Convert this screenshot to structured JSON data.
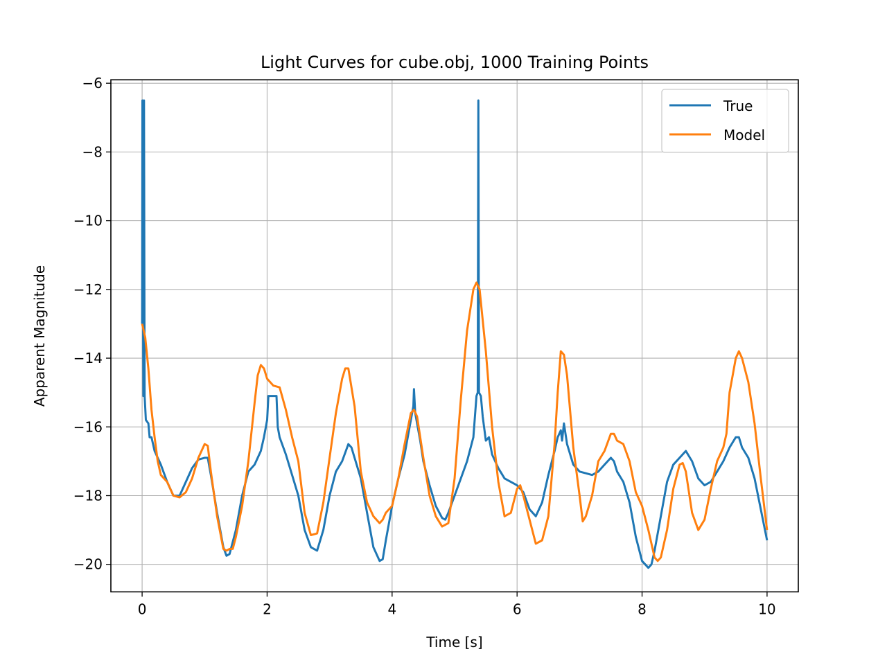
{
  "chart_data": {
    "type": "line",
    "title": "Light Curves for cube.obj, 1000 Training Points",
    "xlabel": "Time [s]",
    "ylabel": "Apparent Magnitude",
    "xlim": [
      -0.5,
      10.5
    ],
    "ylim": [
      -20.8,
      -5.9
    ],
    "x_ticks": [
      0,
      2,
      4,
      6,
      8,
      10
    ],
    "x_tick_labels": [
      "0",
      "2",
      "4",
      "6",
      "8",
      "10"
    ],
    "y_ticks": [
      -6,
      -8,
      -10,
      -12,
      -14,
      -16,
      -18,
      -20
    ],
    "y_tick_labels": [
      "−6",
      "−8",
      "−10",
      "−12",
      "−14",
      "−16",
      "−18",
      "−20"
    ],
    "grid": true,
    "legend_position": "top-right",
    "colors": {
      "True": "#1f77b4",
      "Model": "#ff7f0e"
    },
    "series": [
      {
        "name": "True",
        "points": [
          [
            0,
            -13.0
          ],
          [
            0.005,
            -6.5
          ],
          [
            0.02,
            -15.1
          ],
          [
            0.03,
            -6.5
          ],
          [
            0.04,
            -15.1
          ],
          [
            0.06,
            -15.8
          ],
          [
            0.1,
            -15.9
          ],
          [
            0.12,
            -16.3
          ],
          [
            0.15,
            -16.3
          ],
          [
            0.2,
            -16.7
          ],
          [
            0.3,
            -17.1
          ],
          [
            0.4,
            -17.6
          ],
          [
            0.5,
            -18.0
          ],
          [
            0.6,
            -18.0
          ],
          [
            0.7,
            -17.6
          ],
          [
            0.8,
            -17.2
          ],
          [
            0.9,
            -16.95
          ],
          [
            1.0,
            -16.9
          ],
          [
            1.05,
            -16.9
          ],
          [
            1.1,
            -17.4
          ],
          [
            1.2,
            -18.5
          ],
          [
            1.3,
            -19.5
          ],
          [
            1.35,
            -19.75
          ],
          [
            1.4,
            -19.7
          ],
          [
            1.5,
            -19.0
          ],
          [
            1.6,
            -18.0
          ],
          [
            1.7,
            -17.3
          ],
          [
            1.8,
            -17.1
          ],
          [
            1.9,
            -16.7
          ],
          [
            1.95,
            -16.3
          ],
          [
            2.0,
            -15.8
          ],
          [
            2.02,
            -15.1
          ],
          [
            2.1,
            -15.1
          ],
          [
            2.15,
            -15.1
          ],
          [
            2.17,
            -16.0
          ],
          [
            2.2,
            -16.3
          ],
          [
            2.3,
            -16.8
          ],
          [
            2.4,
            -17.4
          ],
          [
            2.5,
            -18.0
          ],
          [
            2.6,
            -19.0
          ],
          [
            2.7,
            -19.5
          ],
          [
            2.8,
            -19.6
          ],
          [
            2.9,
            -19.0
          ],
          [
            3.0,
            -18.0
          ],
          [
            3.1,
            -17.3
          ],
          [
            3.2,
            -17.0
          ],
          [
            3.3,
            -16.5
          ],
          [
            3.35,
            -16.6
          ],
          [
            3.4,
            -16.9
          ],
          [
            3.5,
            -17.5
          ],
          [
            3.6,
            -18.5
          ],
          [
            3.7,
            -19.5
          ],
          [
            3.8,
            -19.9
          ],
          [
            3.85,
            -19.85
          ],
          [
            3.9,
            -19.3
          ],
          [
            4.0,
            -18.3
          ],
          [
            4.1,
            -17.5
          ],
          [
            4.2,
            -16.8
          ],
          [
            4.3,
            -15.8
          ],
          [
            4.34,
            -15.4
          ],
          [
            4.35,
            -14.9
          ],
          [
            4.37,
            -15.6
          ],
          [
            4.4,
            -15.9
          ],
          [
            4.45,
            -16.4
          ],
          [
            4.5,
            -17.0
          ],
          [
            4.6,
            -17.7
          ],
          [
            4.7,
            -18.3
          ],
          [
            4.8,
            -18.65
          ],
          [
            4.85,
            -18.7
          ],
          [
            4.9,
            -18.5
          ],
          [
            5.0,
            -18.0
          ],
          [
            5.1,
            -17.5
          ],
          [
            5.2,
            -17.0
          ],
          [
            5.3,
            -16.3
          ],
          [
            5.35,
            -15.1
          ],
          [
            5.37,
            -15.0
          ],
          [
            5.38,
            -6.5
          ],
          [
            5.39,
            -15.0
          ],
          [
            5.42,
            -15.1
          ],
          [
            5.45,
            -15.7
          ],
          [
            5.5,
            -16.4
          ],
          [
            5.55,
            -16.3
          ],
          [
            5.6,
            -16.8
          ],
          [
            5.7,
            -17.2
          ],
          [
            5.8,
            -17.5
          ],
          [
            6.0,
            -17.7
          ],
          [
            6.1,
            -17.9
          ],
          [
            6.2,
            -18.4
          ],
          [
            6.3,
            -18.6
          ],
          [
            6.4,
            -18.2
          ],
          [
            6.5,
            -17.4
          ],
          [
            6.6,
            -16.7
          ],
          [
            6.65,
            -16.3
          ],
          [
            6.7,
            -16.1
          ],
          [
            6.72,
            -16.4
          ],
          [
            6.75,
            -15.9
          ],
          [
            6.8,
            -16.5
          ],
          [
            6.9,
            -17.1
          ],
          [
            7.0,
            -17.3
          ],
          [
            7.1,
            -17.35
          ],
          [
            7.2,
            -17.4
          ],
          [
            7.3,
            -17.3
          ],
          [
            7.4,
            -17.1
          ],
          [
            7.5,
            -16.9
          ],
          [
            7.55,
            -17.0
          ],
          [
            7.6,
            -17.3
          ],
          [
            7.7,
            -17.6
          ],
          [
            7.8,
            -18.2
          ],
          [
            7.9,
            -19.2
          ],
          [
            8.0,
            -19.9
          ],
          [
            8.1,
            -20.1
          ],
          [
            8.15,
            -20.0
          ],
          [
            8.2,
            -19.6
          ],
          [
            8.3,
            -18.6
          ],
          [
            8.4,
            -17.6
          ],
          [
            8.5,
            -17.1
          ],
          [
            8.6,
            -16.9
          ],
          [
            8.7,
            -16.7
          ],
          [
            8.8,
            -17.0
          ],
          [
            8.9,
            -17.5
          ],
          [
            9.0,
            -17.7
          ],
          [
            9.1,
            -17.6
          ],
          [
            9.2,
            -17.3
          ],
          [
            9.3,
            -17.0
          ],
          [
            9.4,
            -16.6
          ],
          [
            9.5,
            -16.3
          ],
          [
            9.55,
            -16.3
          ],
          [
            9.6,
            -16.6
          ],
          [
            9.7,
            -16.9
          ],
          [
            9.8,
            -17.5
          ],
          [
            9.9,
            -18.4
          ],
          [
            10.0,
            -19.3
          ]
        ]
      },
      {
        "name": "Model",
        "points": [
          [
            0,
            -13.0
          ],
          [
            0.05,
            -13.4
          ],
          [
            0.1,
            -14.3
          ],
          [
            0.15,
            -15.5
          ],
          [
            0.2,
            -16.3
          ],
          [
            0.25,
            -17.0
          ],
          [
            0.3,
            -17.4
          ],
          [
            0.35,
            -17.5
          ],
          [
            0.4,
            -17.6
          ],
          [
            0.5,
            -18.0
          ],
          [
            0.6,
            -18.05
          ],
          [
            0.7,
            -17.9
          ],
          [
            0.8,
            -17.5
          ],
          [
            0.9,
            -16.9
          ],
          [
            1.0,
            -16.5
          ],
          [
            1.05,
            -16.55
          ],
          [
            1.1,
            -17.3
          ],
          [
            1.2,
            -18.6
          ],
          [
            1.3,
            -19.55
          ],
          [
            1.35,
            -19.6
          ],
          [
            1.4,
            -19.55
          ],
          [
            1.45,
            -19.55
          ],
          [
            1.5,
            -19.2
          ],
          [
            1.6,
            -18.3
          ],
          [
            1.7,
            -17.0
          ],
          [
            1.8,
            -15.3
          ],
          [
            1.85,
            -14.5
          ],
          [
            1.9,
            -14.2
          ],
          [
            1.95,
            -14.3
          ],
          [
            2.0,
            -14.6
          ],
          [
            2.1,
            -14.8
          ],
          [
            2.2,
            -14.85
          ],
          [
            2.3,
            -15.5
          ],
          [
            2.4,
            -16.3
          ],
          [
            2.5,
            -17.0
          ],
          [
            2.6,
            -18.5
          ],
          [
            2.7,
            -19.15
          ],
          [
            2.8,
            -19.1
          ],
          [
            2.9,
            -18.2
          ],
          [
            3.0,
            -16.9
          ],
          [
            3.1,
            -15.6
          ],
          [
            3.2,
            -14.6
          ],
          [
            3.25,
            -14.3
          ],
          [
            3.3,
            -14.3
          ],
          [
            3.4,
            -15.4
          ],
          [
            3.5,
            -17.3
          ],
          [
            3.6,
            -18.2
          ],
          [
            3.7,
            -18.6
          ],
          [
            3.8,
            -18.8
          ],
          [
            3.85,
            -18.7
          ],
          [
            3.9,
            -18.5
          ],
          [
            4.0,
            -18.3
          ],
          [
            4.1,
            -17.5
          ],
          [
            4.2,
            -16.5
          ],
          [
            4.3,
            -15.6
          ],
          [
            4.35,
            -15.5
          ],
          [
            4.4,
            -15.7
          ],
          [
            4.5,
            -16.9
          ],
          [
            4.6,
            -18.0
          ],
          [
            4.7,
            -18.6
          ],
          [
            4.8,
            -18.9
          ],
          [
            4.9,
            -18.8
          ],
          [
            5.0,
            -17.5
          ],
          [
            5.1,
            -15.2
          ],
          [
            5.2,
            -13.2
          ],
          [
            5.3,
            -12.0
          ],
          [
            5.35,
            -11.8
          ],
          [
            5.4,
            -12.0
          ],
          [
            5.5,
            -13.8
          ],
          [
            5.6,
            -16.0
          ],
          [
            5.7,
            -17.6
          ],
          [
            5.8,
            -18.6
          ],
          [
            5.9,
            -18.5
          ],
          [
            6.0,
            -17.8
          ],
          [
            6.05,
            -17.7
          ],
          [
            6.1,
            -18.0
          ],
          [
            6.2,
            -18.7
          ],
          [
            6.3,
            -19.4
          ],
          [
            6.4,
            -19.3
          ],
          [
            6.5,
            -18.6
          ],
          [
            6.6,
            -16.5
          ],
          [
            6.65,
            -15.0
          ],
          [
            6.7,
            -13.8
          ],
          [
            6.75,
            -13.9
          ],
          [
            6.8,
            -14.5
          ],
          [
            6.9,
            -16.6
          ],
          [
            7.0,
            -18.0
          ],
          [
            7.05,
            -18.75
          ],
          [
            7.1,
            -18.6
          ],
          [
            7.2,
            -18.0
          ],
          [
            7.3,
            -17.0
          ],
          [
            7.4,
            -16.7
          ],
          [
            7.5,
            -16.2
          ],
          [
            7.55,
            -16.2
          ],
          [
            7.6,
            -16.4
          ],
          [
            7.7,
            -16.5
          ],
          [
            7.8,
            -17.0
          ],
          [
            7.9,
            -17.9
          ],
          [
            8.0,
            -18.3
          ],
          [
            8.1,
            -19.0
          ],
          [
            8.2,
            -19.8
          ],
          [
            8.25,
            -19.9
          ],
          [
            8.3,
            -19.8
          ],
          [
            8.4,
            -19.0
          ],
          [
            8.5,
            -17.8
          ],
          [
            8.6,
            -17.1
          ],
          [
            8.65,
            -17.05
          ],
          [
            8.7,
            -17.3
          ],
          [
            8.8,
            -18.5
          ],
          [
            8.9,
            -19.0
          ],
          [
            9.0,
            -18.7
          ],
          [
            9.1,
            -17.8
          ],
          [
            9.2,
            -17.0
          ],
          [
            9.3,
            -16.6
          ],
          [
            9.35,
            -16.2
          ],
          [
            9.4,
            -15.0
          ],
          [
            9.5,
            -14.0
          ],
          [
            9.55,
            -13.8
          ],
          [
            9.6,
            -14.0
          ],
          [
            9.7,
            -14.7
          ],
          [
            9.8,
            -15.9
          ],
          [
            9.9,
            -17.5
          ],
          [
            10.0,
            -19.0
          ]
        ]
      }
    ]
  }
}
